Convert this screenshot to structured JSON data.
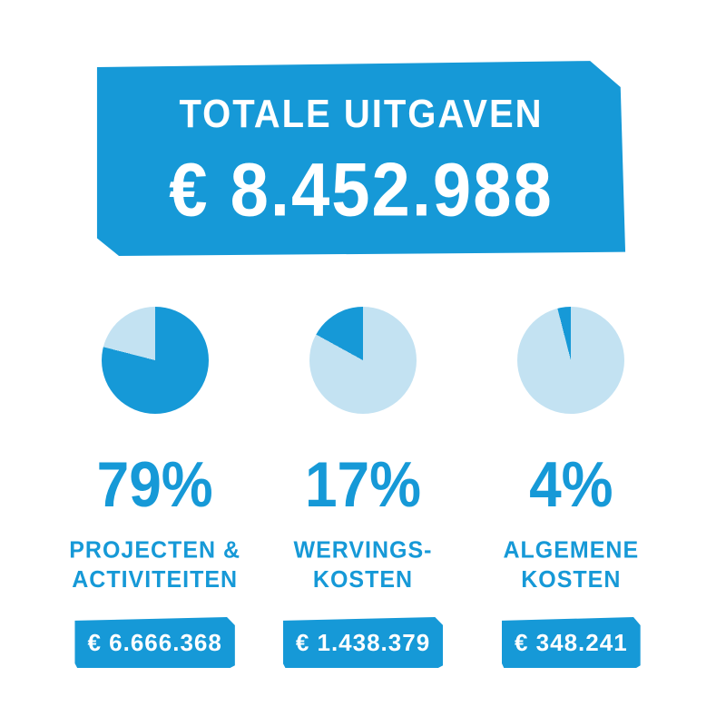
{
  "colors": {
    "primary": "#1699d7",
    "light": "#c3e2f2",
    "background": "#ffffff",
    "text_on_primary": "#ffffff"
  },
  "header": {
    "title": "TOTALE UITGAVEN",
    "amount": "€ 8.452.988"
  },
  "columns": [
    {
      "percent_label": "79%",
      "label_line1": "PROJECTEN &",
      "label_line2": "ACTIVITEITEN",
      "amount_badge": "€ 6.666.368"
    },
    {
      "percent_label": "17%",
      "label_line1": "WERVINGS-",
      "label_line2": "KOSTEN",
      "amount_badge": "€ 1.438.379"
    },
    {
      "percent_label": "4%",
      "label_line1": "ALGEMENE",
      "label_line2": "KOSTEN",
      "amount_badge": "€ 348.241"
    }
  ],
  "chart_data": [
    {
      "type": "pie",
      "title": "PROJECTEN & ACTIVITEITEN",
      "values": [
        79,
        21
      ],
      "percent": 79,
      "amount_label": "€ 6.666.368",
      "amount_eur": 6666368,
      "slice_colors": [
        "#1699d7",
        "#c3e2f2"
      ],
      "dark_slice_anchor": "start-at-top"
    },
    {
      "type": "pie",
      "title": "WERVINGS-KOSTEN",
      "values": [
        17,
        83
      ],
      "percent": 17,
      "amount_label": "€ 1.438.379",
      "amount_eur": 1438379,
      "slice_colors": [
        "#1699d7",
        "#c3e2f2"
      ],
      "dark_slice_anchor": "end-at-top"
    },
    {
      "type": "pie",
      "title": "ALGEMENE KOSTEN",
      "values": [
        4,
        96
      ],
      "percent": 4,
      "amount_label": "€ 348.241",
      "amount_eur": 348241,
      "slice_colors": [
        "#1699d7",
        "#c3e2f2"
      ],
      "dark_slice_anchor": "end-at-top"
    }
  ],
  "totals": {
    "label": "TOTALE UITGAVEN",
    "amount_eur": 8452988,
    "amount_label": "€ 8.452.988"
  }
}
